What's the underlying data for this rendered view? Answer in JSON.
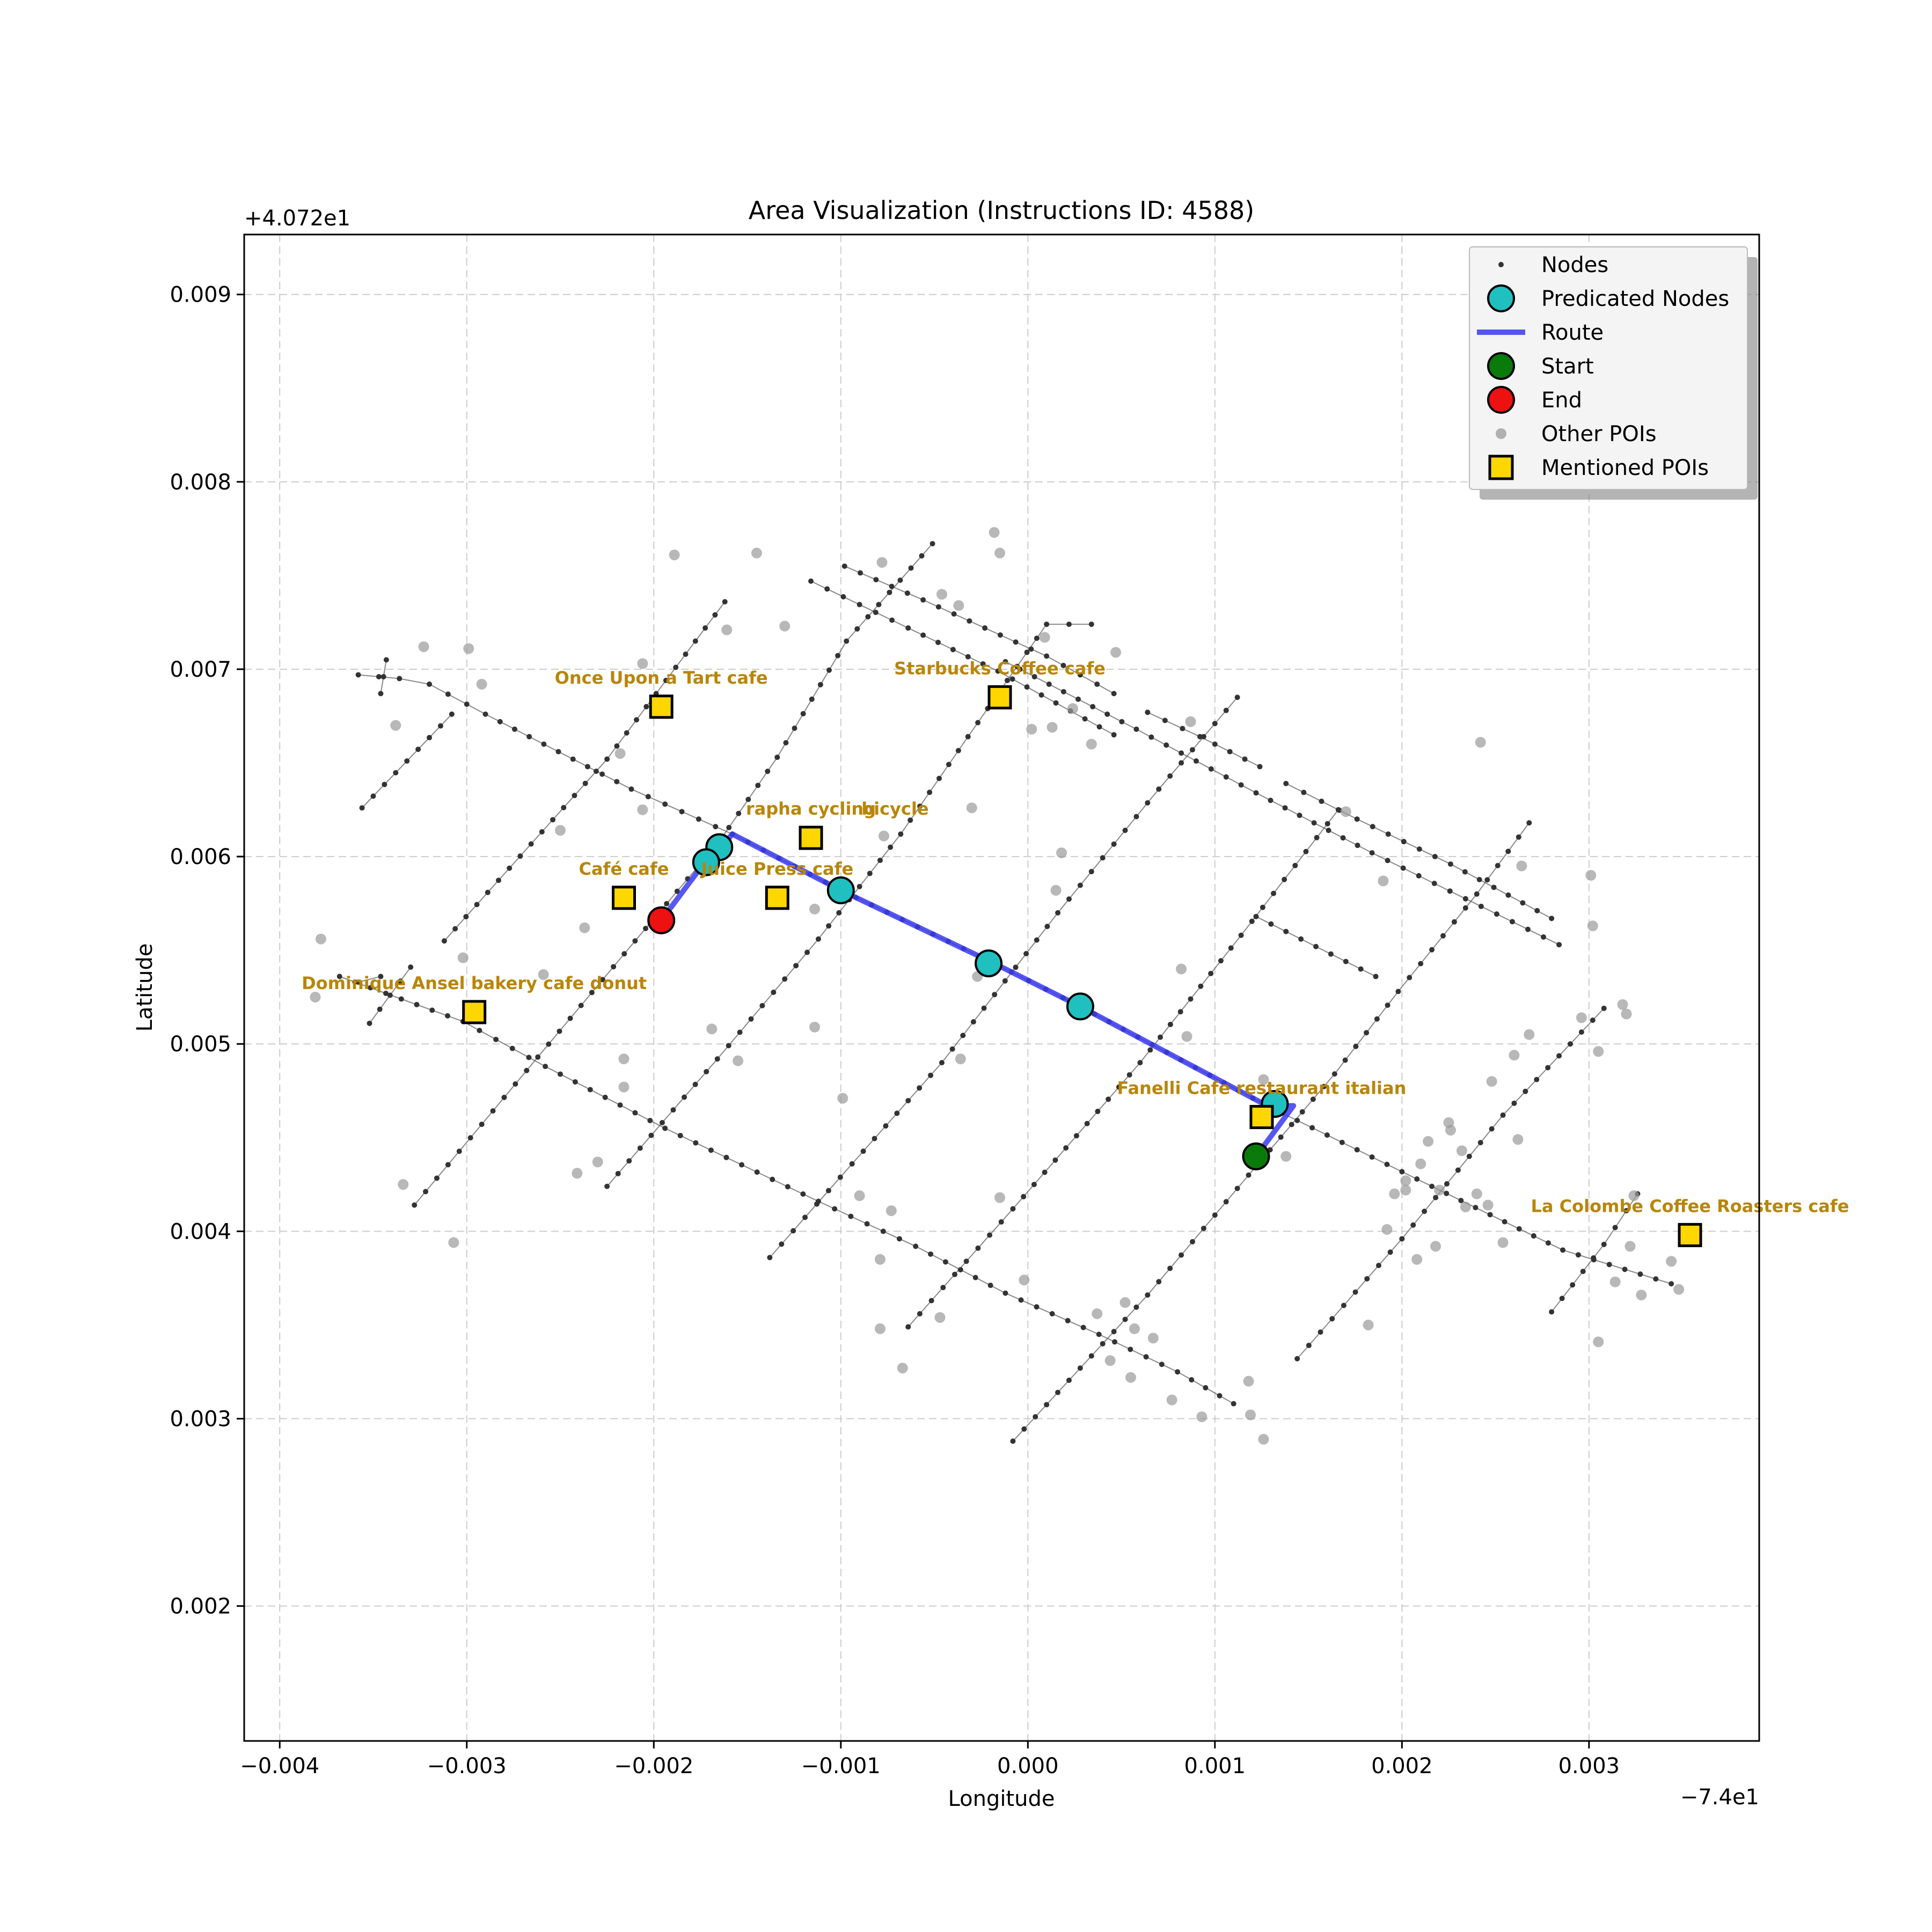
{
  "chart_data": {
    "type": "scatter",
    "title": "Area Visualization (Instructions ID: 4588)",
    "xlabel": "Longitude",
    "ylabel": "Latitude",
    "x_offset_label": "−7.4e1",
    "y_offset_label": "+4.072e1",
    "xlim": [
      -0.00419,
      0.00391
    ],
    "ylim": [
      0.00128,
      0.00932
    ],
    "x_ticks": [
      -0.004,
      -0.003,
      -0.002,
      -0.001,
      0.0,
      0.001,
      0.002,
      0.003
    ],
    "x_tick_labels": [
      "−0.004",
      "−0.003",
      "−0.002",
      "−0.001",
      "0.000",
      "0.001",
      "0.002",
      "0.003"
    ],
    "y_ticks": [
      0.002,
      0.003,
      0.004,
      0.005,
      0.006,
      0.007,
      0.008,
      0.009
    ],
    "y_tick_labels": [
      "0.002",
      "0.003",
      "0.004",
      "0.005",
      "0.006",
      "0.007",
      "0.008",
      "0.009"
    ],
    "grid": true,
    "legend_position": "top-right",
    "legend": [
      {
        "key": "nodes",
        "label": "Nodes"
      },
      {
        "key": "predicted",
        "label": "Predicated Nodes"
      },
      {
        "key": "route",
        "label": "Route"
      },
      {
        "key": "start",
        "label": "Start"
      },
      {
        "key": "end",
        "label": "End"
      },
      {
        "key": "other_pois",
        "label": "Other POIs"
      },
      {
        "key": "mentioned_pois",
        "label": "Mentioned POIs"
      }
    ],
    "colors": {
      "node": "#333333",
      "street": "#555555",
      "predicted": "#20c0c0",
      "route": "#3a3af0",
      "start": "#0a7a0a",
      "end": "#ee1111",
      "other_poi": "#9a9a9a",
      "mentioned_poi": "#ffd700",
      "poi_label": "#b8860b",
      "grid": "#cccccc"
    },
    "streets": [
      [
        [
          -0.00358,
          0.00697
        ],
        [
          -0.00336,
          0.00695
        ],
        [
          -0.0032,
          0.00692
        ],
        [
          -0.0029,
          0.00676
        ],
        [
          -0.00212,
          0.00636
        ],
        [
          -0.00158,
          0.00612
        ],
        [
          -0.001,
          0.00582
        ],
        [
          -0.00018,
          0.00543
        ],
        [
          0.00028,
          0.0052
        ],
        [
          0.00128,
          0.00467
        ],
        [
          0.00216,
          0.00424
        ],
        [
          0.00286,
          0.0039
        ],
        [
          0.00344,
          0.00372
        ]
      ],
      [
        [
          -0.00368,
          0.00536
        ],
        [
          -0.00302,
          0.00512
        ],
        [
          -0.00258,
          0.00488
        ],
        [
          -0.00194,
          0.00455
        ],
        [
          -0.00112,
          0.00416
        ],
        [
          -0.0006,
          0.00392
        ],
        [
          -0.00012,
          0.00367
        ],
        [
          0.00038,
          0.00345
        ],
        [
          0.0008,
          0.00325
        ],
        [
          0.0011,
          0.00308
        ]
      ],
      [
        [
          -0.00116,
          0.00747
        ],
        [
          -0.00064,
          0.00722
        ],
        [
          -0.00016,
          0.00699
        ],
        [
          0.00046,
          0.00665
        ]
      ],
      [
        [
          -0.00098,
          0.00755
        ],
        [
          -0.00056,
          0.00737
        ],
        [
          0.0001,
          0.00707
        ],
        [
          0.00046,
          0.00687
        ]
      ],
      [
        [
          -0.00012,
          0.00704
        ],
        [
          0.00058,
          0.00668
        ],
        [
          0.00122,
          0.00634
        ],
        [
          0.00184,
          0.00602
        ],
        [
          0.00284,
          0.00553
        ]
      ],
      [
        [
          0.00064,
          0.00677
        ],
        [
          0.00092,
          0.00664
        ],
        [
          0.00124,
          0.00648
        ]
      ],
      [
        [
          0.00138,
          0.00639
        ],
        [
          0.00176,
          0.0062
        ],
        [
          0.00226,
          0.00596
        ],
        [
          0.0028,
          0.00567
        ]
      ],
      [
        [
          0.00122,
          0.00568
        ],
        [
          0.00186,
          0.00536
        ]
      ],
      [
        [
          -0.00308,
          0.00676
        ],
        [
          -0.00356,
          0.00626
        ]
      ],
      [
        [
          -0.00352,
          0.00511
        ],
        [
          -0.0033,
          0.00541
        ]
      ],
      [
        [
          -0.00346,
          0.00687
        ],
        [
          -0.00343,
          0.00705
        ]
      ],
      [
        [
          -0.00312,
          0.00555
        ],
        [
          -0.00225,
          0.00652
        ],
        [
          -0.00162,
          0.00736
        ]
      ],
      [
        [
          -0.00328,
          0.00414
        ],
        [
          -0.00262,
          0.00493
        ],
        [
          -0.0021,
          0.00555
        ],
        [
          -0.00165,
          0.00608
        ],
        [
          -0.00134,
          0.00653
        ],
        [
          -0.00097,
          0.00715
        ],
        [
          -0.00051,
          0.00767
        ]
      ],
      [
        [
          -0.00225,
          0.00424
        ],
        [
          -0.00166,
          0.00492
        ],
        [
          -0.00112,
          0.00556
        ],
        [
          -0.00068,
          0.00612
        ],
        [
          -0.00032,
          0.00664
        ],
        [
          0.0001,
          0.00724
        ],
        [
          0.00034,
          0.00724
        ]
      ],
      [
        [
          -0.00138,
          0.00386
        ],
        [
          -0.00094,
          0.00436
        ],
        [
          -0.00046,
          0.0049
        ],
        [
          0.00016,
          0.0057
        ],
        [
          0.0007,
          0.00636
        ],
        [
          0.00112,
          0.00685
        ]
      ],
      [
        [
          -0.00064,
          0.00349
        ],
        [
          -8e-05,
          0.00412
        ],
        [
          0.0006,
          0.0049
        ],
        [
          0.00114,
          0.00558
        ],
        [
          0.00166,
          0.00625
        ]
      ],
      [
        [
          -8e-05,
          0.00288
        ],
        [
          0.00064,
          0.00366
        ],
        [
          0.00118,
          0.0043
        ],
        [
          0.00164,
          0.00484
        ],
        [
          0.00198,
          0.00528
        ],
        [
          0.0024,
          0.0058
        ],
        [
          0.00268,
          0.00618
        ]
      ],
      [
        [
          0.00144,
          0.00332
        ],
        [
          0.002,
          0.00396
        ],
        [
          0.00254,
          0.00462
        ],
        [
          0.00308,
          0.00519
        ]
      ],
      [
        [
          0.0028,
          0.00357
        ],
        [
          0.00308,
          0.00393
        ],
        [
          0.00326,
          0.0042
        ]
      ],
      [
        [
          -0.00358,
          0.00533
        ],
        [
          -0.00346,
          0.00536
        ]
      ]
    ],
    "route": [
      [
        0.00122,
        0.0044
      ],
      [
        0.00142,
        0.00467
      ],
      [
        0.00128,
        0.00467
      ],
      [
        0.00028,
        0.0052
      ],
      [
        -0.00018,
        0.00543
      ],
      [
        -0.001,
        0.00582
      ],
      [
        -0.00158,
        0.00612
      ],
      [
        -0.00164,
        0.00605
      ],
      [
        -0.00172,
        0.00598
      ],
      [
        -0.00196,
        0.00566
      ]
    ],
    "predicted_nodes": [
      [
        0.00132,
        0.00468
      ],
      [
        0.00028,
        0.0052
      ],
      [
        -0.00021,
        0.00543
      ],
      [
        -0.001,
        0.00582
      ],
      [
        -0.00165,
        0.00605
      ],
      [
        -0.00172,
        0.00597
      ]
    ],
    "start": [
      0.00122,
      0.0044
    ],
    "end": [
      -0.00196,
      0.00566
    ],
    "other_pois": [
      [
        -0.00378,
        0.00556
      ],
      [
        -0.00381,
        0.00525
      ],
      [
        -0.00334,
        0.00425
      ],
      [
        -0.00307,
        0.00394
      ],
      [
        -0.00302,
        0.00546
      ],
      [
        -0.00299,
        0.00711
      ],
      [
        -0.00323,
        0.00712
      ],
      [
        -0.00338,
        0.0067
      ],
      [
        -0.00292,
        0.00692
      ],
      [
        -0.0025,
        0.00614
      ],
      [
        -0.00237,
        0.00562
      ],
      [
        -0.00259,
        0.00537
      ],
      [
        -0.00241,
        0.00431
      ],
      [
        -0.0023,
        0.00437
      ],
      [
        -0.00216,
        0.00477
      ],
      [
        -0.00216,
        0.00492
      ],
      [
        -0.00218,
        0.00655
      ],
      [
        -0.00206,
        0.00703
      ],
      [
        -0.00206,
        0.00625
      ],
      [
        -0.00189,
        0.00761
      ],
      [
        -0.00145,
        0.00762
      ],
      [
        -0.00161,
        0.00721
      ],
      [
        -0.0013,
        0.00723
      ],
      [
        -0.00169,
        0.00508
      ],
      [
        -0.00155,
        0.00491
      ],
      [
        -0.00114,
        0.00509
      ],
      [
        -0.00114,
        0.00572
      ],
      [
        -0.00099,
        0.00471
      ],
      [
        -0.0009,
        0.00419
      ],
      [
        -0.00078,
        0.00757
      ],
      [
        -0.00077,
        0.00611
      ],
      [
        -0.00073,
        0.00411
      ],
      [
        -0.00079,
        0.00385
      ],
      [
        -0.00079,
        0.00348
      ],
      [
        -0.00067,
        0.00327
      ],
      [
        -0.00046,
        0.0074
      ],
      [
        -0.00037,
        0.00734
      ],
      [
        -0.0003,
        0.00626
      ],
      [
        -0.00027,
        0.00536
      ],
      [
        -0.00036,
        0.00492
      ],
      [
        -0.00047,
        0.00354
      ],
      [
        -0.00018,
        0.00773
      ],
      [
        -0.00015,
        0.00762
      ],
      [
        -0.00015,
        0.00418
      ],
      [
        -2e-05,
        0.00374
      ],
      [
        2e-05,
        0.00668
      ],
      [
        9e-05,
        0.00717
      ],
      [
        0.00013,
        0.00669
      ],
      [
        0.00024,
        0.00679
      ],
      [
        0.00018,
        0.00602
      ],
      [
        0.00015,
        0.00582
      ],
      [
        0.00034,
        0.0066
      ],
      [
        0.00047,
        0.00709
      ],
      [
        0.00037,
        0.00356
      ],
      [
        0.00044,
        0.00331
      ],
      [
        0.00052,
        0.00362
      ],
      [
        0.00055,
        0.00322
      ],
      [
        0.00057,
        0.00348
      ],
      [
        0.00067,
        0.00343
      ],
      [
        0.00077,
        0.0031
      ],
      [
        0.00082,
        0.0054
      ],
      [
        0.00085,
        0.00504
      ],
      [
        0.00087,
        0.00672
      ],
      [
        0.00093,
        0.00301
      ],
      [
        0.00118,
        0.0032
      ],
      [
        0.00119,
        0.00302
      ],
      [
        0.00126,
        0.00289
      ],
      [
        0.00126,
        0.00481
      ],
      [
        0.00138,
        0.0044
      ],
      [
        0.0017,
        0.00624
      ],
      [
        0.00182,
        0.0035
      ],
      [
        0.0019,
        0.00587
      ],
      [
        0.00192,
        0.00401
      ],
      [
        0.00196,
        0.0042
      ],
      [
        0.00202,
        0.00427
      ],
      [
        0.00202,
        0.00422
      ],
      [
        0.00208,
        0.00385
      ],
      [
        0.0021,
        0.00436
      ],
      [
        0.00214,
        0.00448
      ],
      [
        0.00218,
        0.00392
      ],
      [
        0.0022,
        0.00422
      ],
      [
        0.00225,
        0.00458
      ],
      [
        0.00226,
        0.00454
      ],
      [
        0.00232,
        0.00443
      ],
      [
        0.00234,
        0.00413
      ],
      [
        0.0024,
        0.0042
      ],
      [
        0.00242,
        0.00661
      ],
      [
        0.00246,
        0.00414
      ],
      [
        0.00248,
        0.0048
      ],
      [
        0.00254,
        0.00394
      ],
      [
        0.0026,
        0.00494
      ],
      [
        0.00262,
        0.00449
      ],
      [
        0.00264,
        0.00595
      ],
      [
        0.00268,
        0.00505
      ],
      [
        0.00296,
        0.00514
      ],
      [
        0.00301,
        0.0059
      ],
      [
        0.00302,
        0.00563
      ],
      [
        0.00305,
        0.00341
      ],
      [
        0.00305,
        0.00496
      ],
      [
        0.00314,
        0.00373
      ],
      [
        0.00318,
        0.00521
      ],
      [
        0.0032,
        0.00516
      ],
      [
        0.00322,
        0.00392
      ],
      [
        0.00324,
        0.00419
      ],
      [
        0.00328,
        0.00366
      ],
      [
        0.00344,
        0.00384
      ],
      [
        0.00348,
        0.00369
      ]
    ],
    "mentioned_pois": [
      {
        "name": "Once Upon a Tart cafe",
        "x": -0.00196,
        "y": 0.0068
      },
      {
        "name": "Starbucks Coffee cafe",
        "x": -0.00015,
        "y": 0.00685
      },
      {
        "name": "rapha cycling",
        "x": -0.00116,
        "y": 0.0061
      },
      {
        "name": "bicycle",
        "x": -0.00116,
        "y": 0.0061,
        "label_dx": 0.00045
      },
      {
        "name": "Café cafe",
        "x": -0.00216,
        "y": 0.00578
      },
      {
        "name": "Juice Press cafe",
        "x": -0.00134,
        "y": 0.00578
      },
      {
        "name": "Dominique Ansel bakery cafe donut",
        "x": -0.00296,
        "y": 0.00517
      },
      {
        "name": "Fanelli Cafe restaurant italian",
        "x": 0.00125,
        "y": 0.00461
      },
      {
        "name": "La Colombe Coffee Roasters cafe",
        "x": 0.00354,
        "y": 0.00398
      }
    ]
  }
}
